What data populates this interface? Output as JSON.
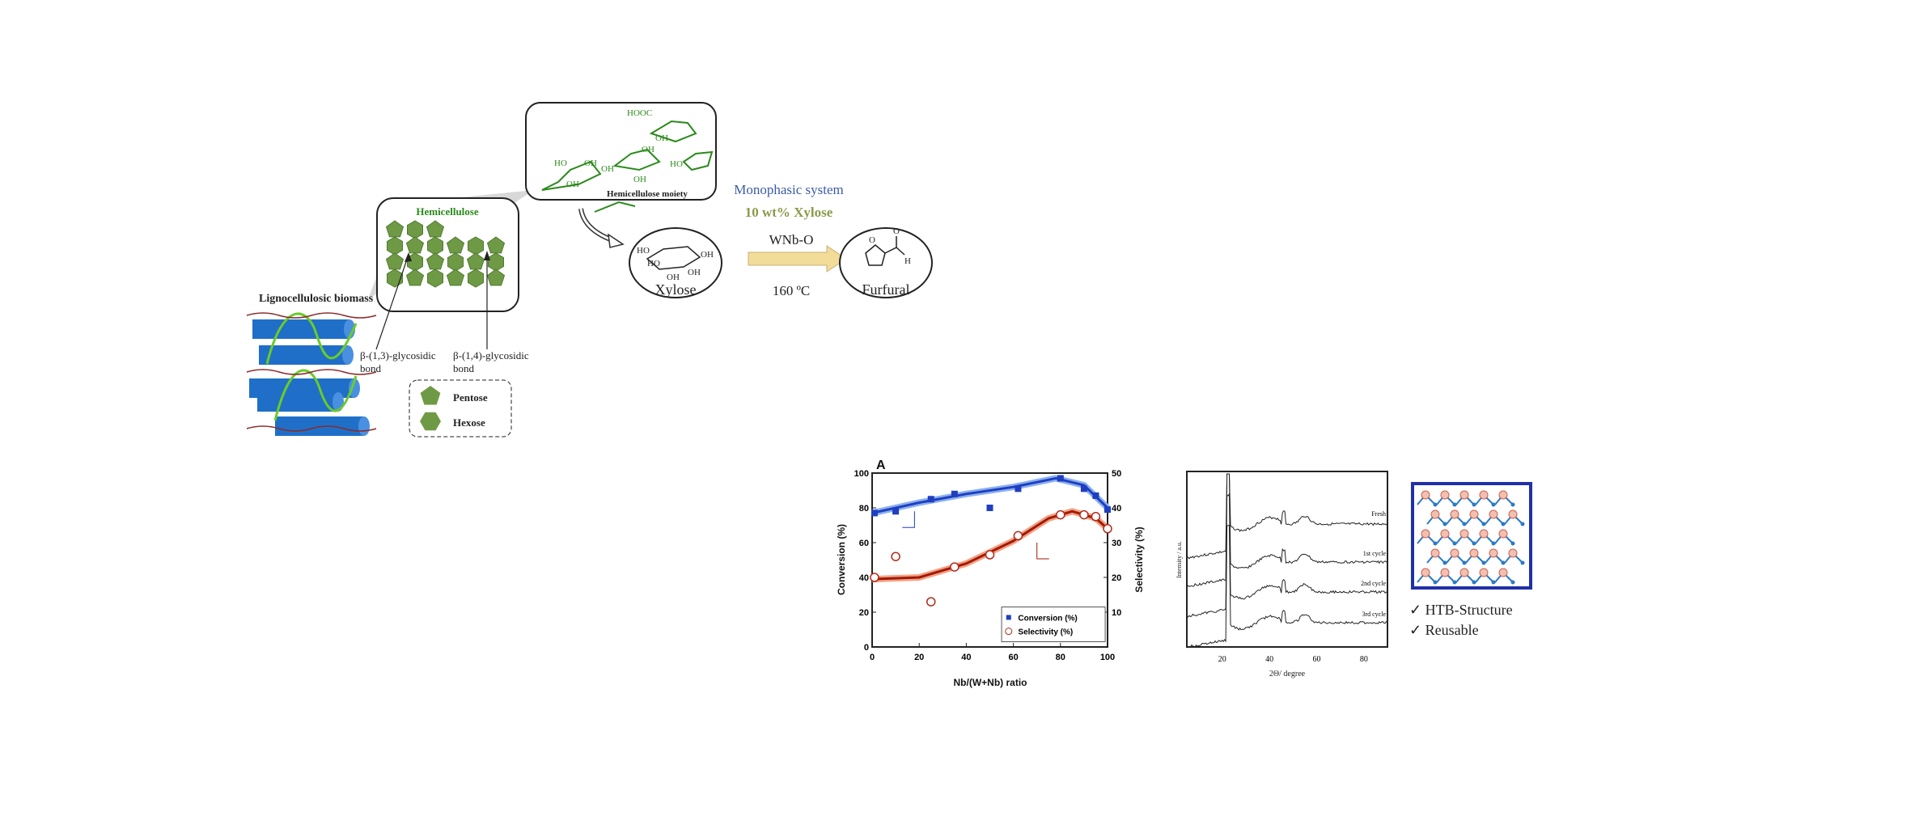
{
  "biomass": {
    "label": "Lignocellulosic biomass"
  },
  "hemicellulose": {
    "title": "Hemicellulose",
    "bond13": [
      "β-(1,3)-glycosidic",
      "bond"
    ],
    "bond14": [
      "β-(1,4)-glycosidic",
      "bond"
    ]
  },
  "legend": {
    "pentose": "Pentose",
    "hexose": "Hexose"
  },
  "moiety": {
    "caption": "Hemicellulose moiety",
    "labels": [
      "HOOC",
      "OH",
      "OH",
      "HO",
      "OH",
      "OH",
      "HO",
      "OH",
      "OH"
    ]
  },
  "reaction": {
    "system": "Monophasic system",
    "feed": "10 wt% Xylose",
    "catalyst": "WNb-O",
    "temperature": "160 ºC",
    "reactant": "Xylose",
    "product": "Furfural",
    "xylose_groups": [
      "HO",
      "HO",
      "OH",
      "OH",
      "OH"
    ],
    "furfural_groups": [
      "O",
      "O",
      "H"
    ]
  },
  "colors": {
    "system": "#3b5ba8",
    "feed": "#8a9a4a",
    "green": "#2a8a1a",
    "pentagon": "#6f9a45",
    "cylinder": "#1f6fc8",
    "arrow": "#f2dc9a"
  },
  "features": [
    "✓ HTB-Structure",
    "✓ Reusable"
  ],
  "chart_data": [
    {
      "type": "scatter",
      "title": "A",
      "xlabel": "Nb/(W+Nb) ratio",
      "ylabel": "Conversion (%)",
      "y2label": "Selectivity (%)",
      "xlim": [
        0,
        100
      ],
      "ylim": [
        0,
        100
      ],
      "y2lim": [
        0,
        50
      ],
      "xticks": [
        0,
        20,
        40,
        60,
        80,
        100
      ],
      "yticks": [
        0,
        20,
        40,
        60,
        80,
        100
      ],
      "y2ticks": [
        10,
        20,
        30,
        40,
        50
      ],
      "legend_position": "bottom-right",
      "series": [
        {
          "name": "Conversion (%)",
          "axis": "left",
          "color": "#1f3fc0",
          "marker": "square",
          "x": [
            1,
            10,
            25,
            35,
            50,
            62,
            80,
            90,
            95,
            100
          ],
          "y": [
            77,
            78,
            85,
            88,
            80,
            91,
            97,
            91,
            87,
            79
          ]
        },
        {
          "name": "Selectivity (%)",
          "axis": "right",
          "color": "#b02a1a",
          "marker": "open-circle",
          "x": [
            1,
            10,
            25,
            35,
            50,
            62,
            80,
            90,
            95,
            100
          ],
          "y": [
            20,
            26,
            13,
            23,
            26.5,
            32,
            38,
            38,
            37.5,
            34
          ]
        }
      ]
    },
    {
      "type": "line",
      "xlabel": "2Θ/ degree",
      "ylabel": "Intensity / a.u.",
      "xlim": [
        5,
        90
      ],
      "xticks": [
        20,
        40,
        60,
        80
      ],
      "series": [
        {
          "name": "Fresh"
        },
        {
          "name": "1st cycle"
        },
        {
          "name": "2nd cycle"
        },
        {
          "name": "3rd cycle"
        }
      ]
    }
  ]
}
